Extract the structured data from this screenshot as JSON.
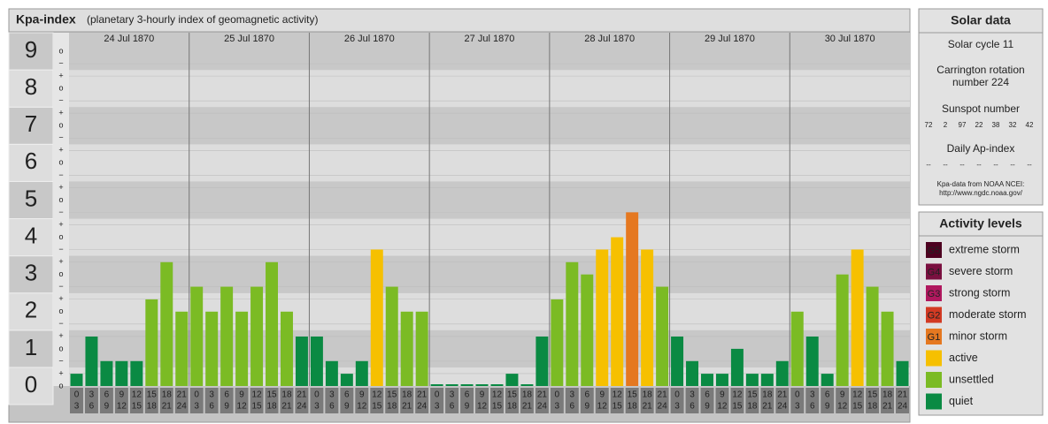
{
  "chart_data": {
    "type": "bar",
    "title": "Kpa-index",
    "subtitle": "(planetary 3-hourly index of geomagnetic activity)",
    "categories": [
      "24 Jul 1870",
      "25 Jul 1870",
      "26 Jul 1870",
      "27 Jul 1870",
      "28 Jul 1870",
      "29 Jul 1870",
      "30 Jul 1870"
    ],
    "hour_edges": [
      0,
      3,
      6,
      9,
      12,
      15,
      18,
      21,
      24
    ],
    "values": [
      [
        0.33,
        1.33,
        0.67,
        0.67,
        0.67,
        2.33,
        3.33,
        2
      ],
      [
        2.67,
        2,
        2.67,
        2,
        2.67,
        3.33,
        2,
        1.33
      ],
      [
        1.33,
        0.67,
        0.33,
        0.67,
        3.67,
        2.67,
        2,
        2
      ],
      [
        0,
        0,
        0,
        0,
        0,
        0.33,
        0,
        1.33
      ],
      [
        2.33,
        3.33,
        3,
        3.67,
        4,
        4.67,
        3.67,
        2.67
      ],
      [
        1.33,
        0.67,
        0.33,
        0.33,
        1,
        0.33,
        0.33,
        0.67
      ],
      [
        2,
        1.33,
        0.33,
        3,
        3.67,
        2.67,
        2,
        0.67
      ]
    ],
    "colors": [
      [
        "#0a8a43",
        "#0a8a43",
        "#0a8a43",
        "#0a8a43",
        "#0a8a43",
        "#7bbb24",
        "#7bbb24",
        "#7bbb24"
      ],
      [
        "#7bbb24",
        "#7bbb24",
        "#7bbb24",
        "#7bbb24",
        "#7bbb24",
        "#7bbb24",
        "#7bbb24",
        "#0a8a43"
      ],
      [
        "#0a8a43",
        "#0a8a43",
        "#0a8a43",
        "#0a8a43",
        "#f6c000",
        "#7bbb24",
        "#7bbb24",
        "#7bbb24"
      ],
      [
        "#0a8a43",
        "#0a8a43",
        "#0a8a43",
        "#0a8a43",
        "#0a8a43",
        "#0a8a43",
        "#0a8a43",
        "#0a8a43"
      ],
      [
        "#7bbb24",
        "#7bbb24",
        "#7bbb24",
        "#f6c000",
        "#f6c000",
        "#e57820",
        "#f6c000",
        "#7bbb24"
      ],
      [
        "#0a8a43",
        "#0a8a43",
        "#0a8a43",
        "#0a8a43",
        "#0a8a43",
        "#0a8a43",
        "#0a8a43",
        "#0a8a43"
      ],
      [
        "#7bbb24",
        "#0a8a43",
        "#0a8a43",
        "#7bbb24",
        "#f6c000",
        "#7bbb24",
        "#7bbb24",
        "#0a8a43"
      ]
    ],
    "ylim": [
      0,
      9.5
    ],
    "yticks": [
      0,
      1,
      2,
      3,
      4,
      5,
      6,
      7,
      8,
      9
    ],
    "minor_tick_labels": [
      "o",
      "+",
      "−"
    ],
    "grid": true
  },
  "solar_data": {
    "title": "Solar data",
    "cycle": "Solar cycle 11",
    "carrington": "Carrington rotation number 224",
    "sunspot_title": "Sunspot number",
    "sunspot": [
      72,
      2,
      97,
      22,
      38,
      32,
      42
    ],
    "ap_title": "Daily Ap-index",
    "ap": [
      "--",
      "--",
      "--",
      "--",
      "--",
      "--",
      "--"
    ],
    "source": "Kpa-data from NOAA NCEI:",
    "source_url": "http://www.ngdc.noaa.gov/"
  },
  "activity_levels": {
    "title": "Activity levels",
    "levels": [
      {
        "badge": "G5",
        "label": "extreme storm",
        "color": "#4d0020"
      },
      {
        "badge": "G4",
        "label": "severe storm",
        "color": "#7a1040"
      },
      {
        "badge": "G3",
        "label": "strong storm",
        "color": "#b0185e"
      },
      {
        "badge": "G2",
        "label": "moderate storm",
        "color": "#d23a23"
      },
      {
        "badge": "G1",
        "label": "minor storm",
        "color": "#e57820"
      },
      {
        "badge": null,
        "label": "active",
        "color": "#f6c000"
      },
      {
        "badge": null,
        "label": "unsettled",
        "color": "#7bbb24"
      },
      {
        "badge": null,
        "label": "quiet",
        "color": "#0a8a43"
      }
    ]
  }
}
